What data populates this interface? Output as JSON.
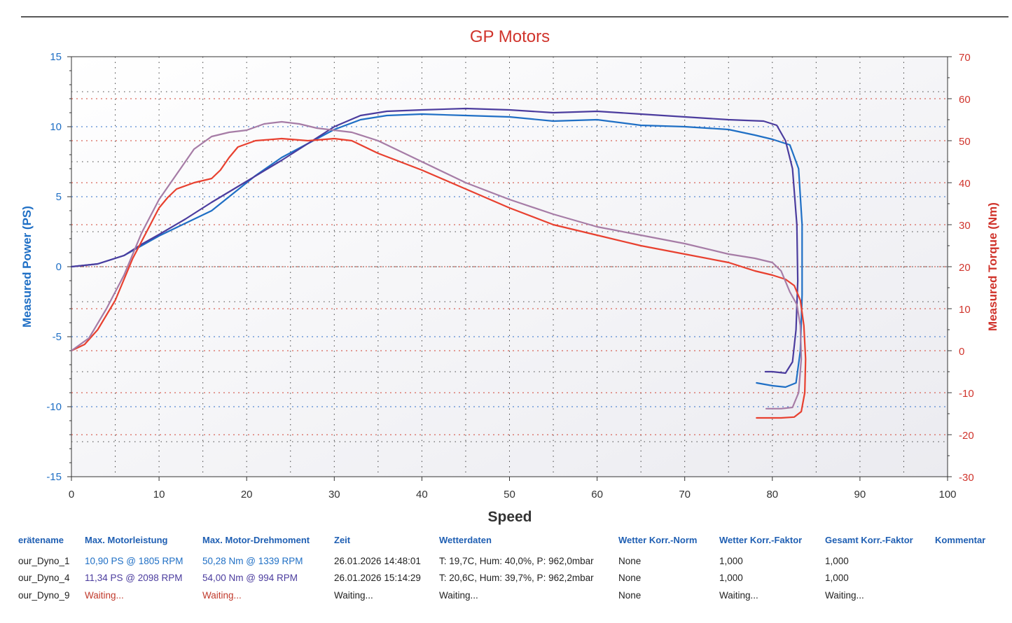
{
  "chart_data": {
    "type": "line",
    "title": "GP Motors",
    "xlabel": "Speed",
    "ylabel_left": "Measured Power (PS)",
    "ylabel_right": "Measured Torque (Nm)",
    "xlim": [
      0,
      100
    ],
    "ylim_left": [
      -15,
      15
    ],
    "ylim_right": [
      -30,
      70
    ],
    "x_ticks": [
      0,
      10,
      20,
      30,
      40,
      50,
      60,
      70,
      80,
      90,
      100
    ],
    "y_left_ticks": [
      -15,
      -10,
      -5,
      0,
      5,
      10,
      15
    ],
    "y_right_ticks": [
      -30,
      -20,
      -10,
      0,
      10,
      20,
      30,
      40,
      50,
      60,
      70
    ],
    "grid": true,
    "series": [
      {
        "axis": "left",
        "color": "#1f6fc5",
        "points": [
          [
            0,
            0
          ],
          [
            3,
            0.2
          ],
          [
            6,
            0.8
          ],
          [
            8,
            1.5
          ],
          [
            10,
            2.2
          ],
          [
            13,
            3.1
          ],
          [
            16,
            4.0
          ],
          [
            18,
            5.0
          ],
          [
            21,
            6.5
          ],
          [
            24,
            7.8
          ],
          [
            27,
            8.8
          ],
          [
            30,
            9.8
          ],
          [
            33,
            10.5
          ],
          [
            36,
            10.8
          ],
          [
            40,
            10.9
          ],
          [
            45,
            10.8
          ],
          [
            50,
            10.7
          ],
          [
            55,
            10.4
          ],
          [
            60,
            10.5
          ],
          [
            65,
            10.1
          ],
          [
            70,
            10.0
          ],
          [
            75,
            9.8
          ],
          [
            78,
            9.4
          ],
          [
            80,
            9.1
          ],
          [
            82,
            8.7
          ],
          [
            83,
            7.0
          ],
          [
            83.4,
            3.0
          ],
          [
            83.4,
            -2.0
          ],
          [
            83.2,
            -6.0
          ],
          [
            82.7,
            -8.3
          ],
          [
            81.5,
            -8.6
          ],
          [
            80,
            -8.5
          ],
          [
            78.2,
            -8.3
          ]
        ]
      },
      {
        "axis": "left",
        "color": "#4b3c9e",
        "points": [
          [
            0,
            0
          ],
          [
            3,
            0.2
          ],
          [
            6,
            0.8
          ],
          [
            8,
            1.6
          ],
          [
            10,
            2.3
          ],
          [
            13,
            3.4
          ],
          [
            16,
            4.6
          ],
          [
            20,
            6.1
          ],
          [
            24,
            7.6
          ],
          [
            27,
            8.8
          ],
          [
            30,
            10.0
          ],
          [
            33,
            10.8
          ],
          [
            36,
            11.1
          ],
          [
            40,
            11.2
          ],
          [
            45,
            11.3
          ],
          [
            50,
            11.2
          ],
          [
            55,
            11.0
          ],
          [
            60,
            11.1
          ],
          [
            65,
            10.9
          ],
          [
            70,
            10.7
          ],
          [
            75,
            10.5
          ],
          [
            79,
            10.4
          ],
          [
            80.5,
            10.1
          ],
          [
            81.5,
            9.0
          ],
          [
            82.3,
            7.0
          ],
          [
            82.8,
            3.0
          ],
          [
            82.9,
            -1.0
          ],
          [
            82.7,
            -4.5
          ],
          [
            82.3,
            -6.8
          ],
          [
            81.5,
            -7.6
          ],
          [
            80,
            -7.5
          ],
          [
            79.2,
            -7.5
          ]
        ]
      },
      {
        "axis": "right",
        "color": "#e8402f",
        "points": [
          [
            0,
            0
          ],
          [
            1.5,
            1.5
          ],
          [
            3,
            5
          ],
          [
            5,
            12
          ],
          [
            7,
            22
          ],
          [
            8,
            26
          ],
          [
            9,
            30
          ],
          [
            10,
            34
          ],
          [
            11,
            36.5
          ],
          [
            12,
            38.5
          ],
          [
            14,
            40
          ],
          [
            16,
            41
          ],
          [
            17,
            43
          ],
          [
            18,
            46
          ],
          [
            19,
            48.5
          ],
          [
            21,
            50
          ],
          [
            24,
            50.5
          ],
          [
            27,
            50
          ],
          [
            30,
            50.5
          ],
          [
            32,
            50
          ],
          [
            35,
            47
          ],
          [
            40,
            43
          ],
          [
            45,
            38.5
          ],
          [
            50,
            34
          ],
          [
            55,
            30
          ],
          [
            60,
            27.5
          ],
          [
            65,
            25
          ],
          [
            70,
            23
          ],
          [
            75,
            21
          ],
          [
            78,
            19
          ],
          [
            80,
            18
          ],
          [
            81.5,
            17
          ],
          [
            82.5,
            15.5
          ],
          [
            83.2,
            12
          ],
          [
            83.6,
            6
          ],
          [
            83.8,
            -2
          ],
          [
            83.7,
            -10
          ],
          [
            83.3,
            -14.5
          ],
          [
            82.5,
            -15.8
          ],
          [
            81,
            -16
          ],
          [
            79.5,
            -16
          ],
          [
            78.2,
            -16
          ]
        ]
      },
      {
        "axis": "right",
        "color": "#a67ca6",
        "points": [
          [
            0,
            0
          ],
          [
            2,
            3
          ],
          [
            4,
            10
          ],
          [
            6,
            18
          ],
          [
            8,
            28
          ],
          [
            10,
            36
          ],
          [
            12,
            42
          ],
          [
            14,
            48
          ],
          [
            16,
            51
          ],
          [
            18,
            52
          ],
          [
            20,
            52.5
          ],
          [
            22,
            54
          ],
          [
            24,
            54.5
          ],
          [
            26,
            54
          ],
          [
            28,
            53
          ],
          [
            30,
            52.5
          ],
          [
            32,
            52
          ],
          [
            35,
            50
          ],
          [
            40,
            45
          ],
          [
            45,
            40
          ],
          [
            50,
            36
          ],
          [
            55,
            32.5
          ],
          [
            60,
            29.5
          ],
          [
            65,
            27.5
          ],
          [
            70,
            25.5
          ],
          [
            75,
            23
          ],
          [
            78,
            22
          ],
          [
            80,
            21
          ],
          [
            81,
            19
          ],
          [
            82,
            14
          ],
          [
            82.8,
            11
          ],
          [
            83.2,
            6
          ],
          [
            83.3,
            -2
          ],
          [
            83,
            -10
          ],
          [
            82.3,
            -13.5
          ],
          [
            81,
            -13.8
          ],
          [
            79.3,
            -13.8
          ]
        ]
      }
    ],
    "table": {
      "headers": [
        "erätename",
        "Max. Motorleistung",
        "Max. Motor-Drehmoment",
        "Zeit",
        "Wetterdaten",
        "Wetter Korr.-Norm",
        "Wetter Korr.-Faktor",
        "Gesamt Korr.-Faktor",
        "Kommentar"
      ],
      "rows": [
        {
          "cells": [
            "our_Dyno_1",
            "10,90 PS @ 1805 RPM",
            "50,28 Nm @ 1339 RPM",
            "26.01.2026 14:48:01",
            "T: 19,7C, Hum: 40,0%, P: 962,0mbar",
            "None",
            "1,000",
            "1,000",
            ""
          ],
          "accent": "#1f6fc5"
        },
        {
          "cells": [
            "our_Dyno_4",
            "11,34 PS @ 2098 RPM",
            "54,00 Nm @ 994 RPM",
            "26.01.2026 15:14:29",
            "T: 20,6C, Hum: 39,7%, P: 962,2mbar",
            "None",
            "1,000",
            "1,000",
            ""
          ],
          "accent": "#4b3c9e"
        },
        {
          "cells": [
            "our_Dyno_9",
            "Waiting...",
            "Waiting...",
            "Waiting...",
            "Waiting...",
            "None",
            "Waiting...",
            "Waiting...",
            ""
          ],
          "accent": "#c0392b"
        }
      ]
    }
  },
  "colors": {
    "title": "#d0342c",
    "left_axis": "#1f6fc5",
    "right_axis": "#d0342c",
    "grid_black": "#444444",
    "grid_blue": "#2f6fc9",
    "grid_red": "#d04030"
  }
}
